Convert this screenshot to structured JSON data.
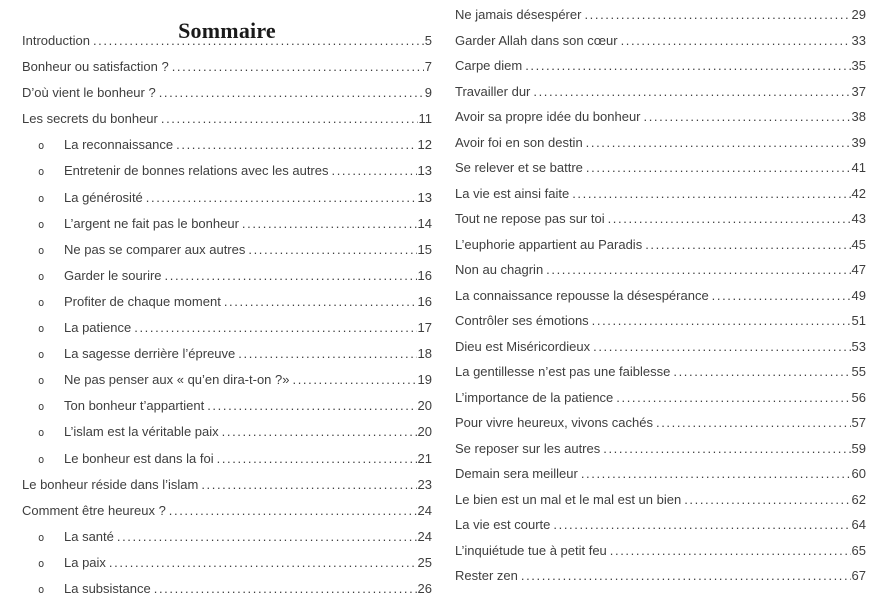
{
  "title": "Sommaire",
  "leader_char": ".",
  "colors": {
    "background": "#ffffff",
    "text": "#3e3e3e",
    "title": "#1a1a1a"
  },
  "toc": {
    "left_column": [
      {
        "label": "Introduction",
        "page": "5",
        "level": 1
      },
      {
        "label": "Bonheur ou satisfaction ?",
        "page": "7",
        "level": 1
      },
      {
        "label": "D’où vient le bonheur ?",
        "page": "9",
        "level": 1
      },
      {
        "label": "Les secrets du bonheur",
        "page": "11",
        "level": 1
      },
      {
        "label": "La reconnaissance",
        "page": "12",
        "level": 2
      },
      {
        "label": "Entretenir de bonnes relations avec les autres",
        "page": "13",
        "level": 2
      },
      {
        "label": "La générosité",
        "page": "13",
        "level": 2
      },
      {
        "label": "L’argent ne fait pas le bonheur",
        "page": "14",
        "level": 2
      },
      {
        "label": "Ne pas se comparer aux autres",
        "page": "15",
        "level": 2
      },
      {
        "label": "Garder le sourire",
        "page": "16",
        "level": 2
      },
      {
        "label": "Profiter de chaque moment",
        "page": "16",
        "level": 2
      },
      {
        "label": "La patience",
        "page": "17",
        "level": 2
      },
      {
        "label": "La sagesse derrière l’épreuve",
        "page": "18",
        "level": 2
      },
      {
        "label": "Ne pas penser aux « qu’en dira-t-on ?»",
        "page": "19",
        "level": 2
      },
      {
        "label": "Ton bonheur t’appartient",
        "page": "20",
        "level": 2
      },
      {
        "label": "L’islam est la véritable paix",
        "page": "20",
        "level": 2
      },
      {
        "label": "Le bonheur est dans la foi",
        "page": "21",
        "level": 2
      },
      {
        "label": "Le bonheur réside dans l’islam",
        "page": "23",
        "level": 1
      },
      {
        "label": "Comment être heureux ?",
        "page": "24",
        "level": 1
      },
      {
        "label": "La santé",
        "page": "24",
        "level": 2
      },
      {
        "label": "La paix",
        "page": "25",
        "level": 2
      },
      {
        "label": "La subsistance",
        "page": "26",
        "level": 2
      }
    ],
    "right_column": [
      {
        "label": "Ne jamais désespérer",
        "page": "29",
        "level": 1
      },
      {
        "label": "Garder Allah dans son cœur",
        "page": "33",
        "level": 1
      },
      {
        "label": "Carpe diem",
        "page": "35",
        "level": 1
      },
      {
        "label": "Travailler dur",
        "page": "37",
        "level": 1
      },
      {
        "label": "Avoir sa propre idée du bonheur",
        "page": "38",
        "level": 1
      },
      {
        "label": "Avoir foi en son destin",
        "page": "39",
        "level": 1
      },
      {
        "label": "Se relever et se battre",
        "page": "41",
        "level": 1
      },
      {
        "label": "La vie est ainsi faite",
        "page": "42",
        "level": 1
      },
      {
        "label": "Tout ne repose pas sur toi",
        "page": "43",
        "level": 1
      },
      {
        "label": "L’euphorie appartient au Paradis",
        "page": "45",
        "level": 1
      },
      {
        "label": "Non au chagrin",
        "page": "47",
        "level": 1
      },
      {
        "label": "La connaissance repousse la désespérance",
        "page": "49",
        "level": 1
      },
      {
        "label": "Contrôler ses émotions",
        "page": "51",
        "level": 1
      },
      {
        "label": "Dieu est Miséricordieux",
        "page": "53",
        "level": 1
      },
      {
        "label": "La gentillesse n’est pas une faiblesse",
        "page": "55",
        "level": 1
      },
      {
        "label": "L’importance de la patience",
        "page": "56",
        "level": 1
      },
      {
        "label": "Pour vivre heureux, vivons cachés",
        "page": "57",
        "level": 1
      },
      {
        "label": "Se reposer sur les autres",
        "page": "59",
        "level": 1
      },
      {
        "label": "Demain sera meilleur",
        "page": "60",
        "level": 1
      },
      {
        "label": "Le bien est un mal et le mal est un bien",
        "page": "62",
        "level": 1
      },
      {
        "label": "La vie est courte",
        "page": "64",
        "level": 1
      },
      {
        "label": "L’inquiétude tue à petit feu",
        "page": "65",
        "level": 1
      },
      {
        "label": "Rester zen",
        "page": "67",
        "level": 1
      }
    ]
  }
}
